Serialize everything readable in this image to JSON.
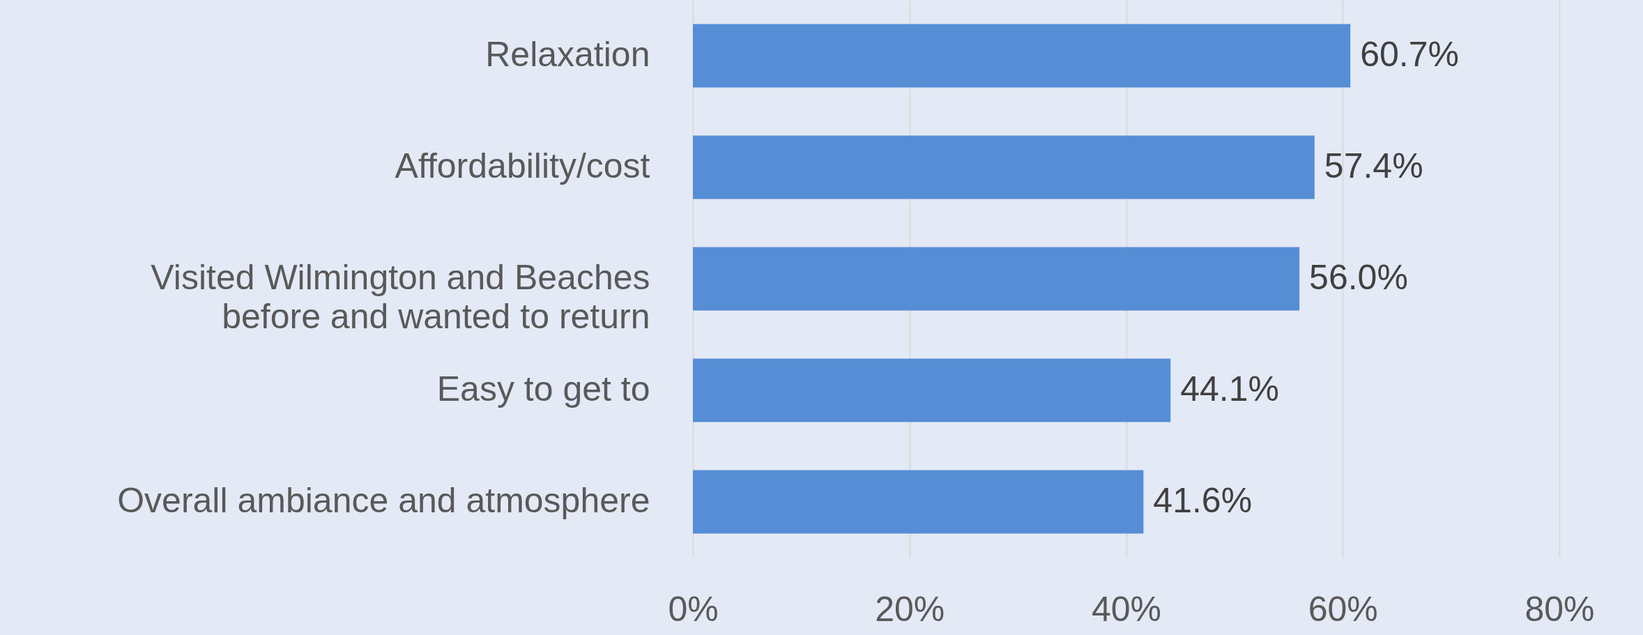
{
  "chart_data": {
    "type": "bar",
    "orientation": "horizontal",
    "categories": [
      "Relaxation",
      "Affordability/cost",
      "Visited Wilmington and Beaches before and wanted to return",
      "Easy to get to",
      "Overall ambiance and atmosphere"
    ],
    "values": [
      60.7,
      57.4,
      56.0,
      44.1,
      41.6
    ],
    "value_labels": [
      "60.7%",
      "57.4%",
      "56.0%",
      "44.1%",
      "41.6%"
    ],
    "color": "#558ed5",
    "xlim": [
      0,
      80
    ],
    "xticks": [
      {
        "value": 0,
        "label": "0%"
      },
      {
        "value": 20,
        "label": "20%"
      },
      {
        "value": 40,
        "label": "40%"
      },
      {
        "value": 60,
        "label": "60%"
      },
      {
        "value": 80,
        "label": "80%"
      }
    ],
    "grid": "x"
  }
}
